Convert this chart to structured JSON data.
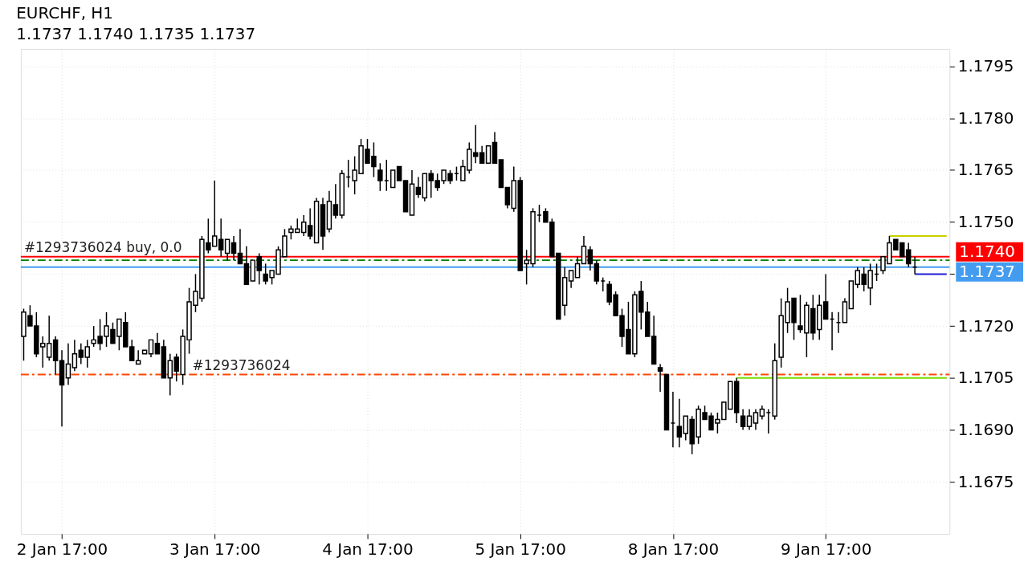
{
  "chart_data": {
    "type": "candlestick",
    "title": "EURCHF, H1",
    "subtitle": "1.1737 1.1740 1.1735 1.1737",
    "categories": [
      null,
      null,
      null,
      null,
      null,
      null,
      "2 Jan 17:00",
      null,
      null,
      null,
      null,
      null,
      null,
      null,
      null,
      null,
      null,
      null,
      null,
      null,
      null,
      null,
      null,
      null,
      null,
      null,
      null,
      null,
      null,
      null,
      "3 Jan 17:00",
      null,
      null,
      null,
      null,
      null,
      null,
      null,
      null,
      null,
      null,
      null,
      null,
      null,
      null,
      null,
      null,
      null,
      null,
      null,
      null,
      null,
      null,
      null,
      "4 Jan 17:00",
      null,
      null,
      null,
      null,
      null,
      null,
      null,
      null,
      null,
      null,
      null,
      null,
      null,
      null,
      null,
      null,
      null,
      null,
      null,
      null,
      null,
      null,
      null,
      "5 Jan 17:00",
      null,
      null,
      null,
      null,
      null,
      null,
      null,
      null,
      null,
      null,
      null,
      null,
      null,
      null,
      null,
      null,
      null,
      null,
      null,
      null,
      null,
      null,
      null,
      "8 Jan 17:00",
      null,
      null,
      null,
      null,
      null,
      null,
      null,
      null,
      null,
      null,
      null,
      null,
      null,
      null,
      null,
      null,
      null,
      null,
      null,
      null,
      null,
      null,
      null,
      "9 Jan 17:00",
      null,
      null,
      null,
      null,
      null,
      null,
      null,
      null,
      null,
      null,
      null,
      null,
      null,
      null,
      null,
      null,
      null,
      null,
      null
    ],
    "ohlc": [
      [
        1.1717,
        1.1725,
        1.171,
        1.1724
      ],
      [
        1.1723,
        1.1726,
        1.172,
        1.172
      ],
      [
        1.172,
        1.1724,
        1.1711,
        1.1712
      ],
      [
        1.1714,
        1.1717,
        1.1708,
        1.1715
      ],
      [
        1.1711,
        1.1723,
        1.171,
        1.1715
      ],
      [
        1.1716,
        1.1717,
        1.1706,
        1.171
      ],
      [
        1.171,
        1.1713,
        1.1691,
        1.1703
      ],
      [
        1.1705,
        1.1715,
        1.1703,
        1.1709
      ],
      [
        1.1708,
        1.1716,
        1.1707,
        1.1712
      ],
      [
        1.1713,
        1.1715,
        1.1709,
        1.1711
      ],
      [
        1.1711,
        1.1716,
        1.1708,
        1.1714
      ],
      [
        1.1715,
        1.172,
        1.1714,
        1.1716
      ],
      [
        1.1717,
        1.1722,
        1.1713,
        1.1715
      ],
      [
        1.1717,
        1.1724,
        1.1714,
        1.172
      ],
      [
        1.1719,
        1.1721,
        1.1715,
        1.1715
      ],
      [
        1.1717,
        1.1722,
        1.1713,
        1.1722
      ],
      [
        1.1721,
        1.1724,
        1.1714,
        1.1714
      ],
      [
        1.1714,
        1.1716,
        1.171,
        1.171
      ],
      [
        1.1709,
        1.1713,
        1.1709,
        1.171
      ],
      [
        1.1712,
        1.1713,
        1.1712,
        1.1713
      ],
      [
        1.1712,
        1.1716,
        1.1711,
        1.1716
      ],
      [
        1.1715,
        1.1718,
        1.1712,
        1.1712
      ],
      [
        1.1714,
        1.1716,
        1.1705,
        1.1705
      ],
      [
        1.1705,
        1.1712,
        1.17,
        1.171
      ],
      [
        1.1711,
        1.1712,
        1.1704,
        1.1707
      ],
      [
        1.1706,
        1.1719,
        1.1703,
        1.1717
      ],
      [
        1.1716,
        1.1731,
        1.1712,
        1.1727
      ],
      [
        1.1726,
        1.1735,
        1.1724,
        1.173
      ],
      [
        1.1728,
        1.1746,
        1.1727,
        1.1745
      ],
      [
        1.1744,
        1.1751,
        1.1741,
        1.1742
      ],
      [
        1.1743,
        1.1762,
        1.1743,
        1.1746
      ],
      [
        1.1745,
        1.1751,
        1.174,
        1.1742
      ],
      [
        1.1741,
        1.1745,
        1.1739,
        1.1745
      ],
      [
        1.1744,
        1.1746,
        1.1739,
        1.1741
      ],
      [
        1.1741,
        1.1748,
        1.1738,
        1.1738
      ],
      [
        1.1738,
        1.1743,
        1.1732,
        1.1732
      ],
      [
        1.1733,
        1.1739,
        1.1733,
        1.1739
      ],
      [
        1.174,
        1.1741,
        1.1732,
        1.1736
      ],
      [
        1.1735,
        1.1738,
        1.1732,
        1.1733
      ],
      [
        1.1734,
        1.1736,
        1.1732,
        1.1736
      ],
      [
        1.1735,
        1.1743,
        1.1735,
        1.1742
      ],
      [
        1.174,
        1.1748,
        1.174,
        1.1746
      ],
      [
        1.1747,
        1.1749,
        1.1745,
        1.1748
      ],
      [
        1.1747,
        1.1751,
        1.1747,
        1.1748
      ],
      [
        1.1747,
        1.1752,
        1.1746,
        1.175
      ],
      [
        1.1749,
        1.1754,
        1.1745,
        1.1746
      ],
      [
        1.1744,
        1.1757,
        1.1744,
        1.1756
      ],
      [
        1.1755,
        1.1757,
        1.1742,
        1.1746
      ],
      [
        1.1748,
        1.1759,
        1.1747,
        1.1756
      ],
      [
        1.1755,
        1.1761,
        1.1751,
        1.1752
      ],
      [
        1.1752,
        1.1765,
        1.1751,
        1.1764
      ],
      [
        1.1763,
        1.1768,
        1.176,
        1.1763
      ],
      [
        1.1762,
        1.1769,
        1.1758,
        1.1765
      ],
      [
        1.1764,
        1.1774,
        1.1764,
        1.1772
      ],
      [
        1.1771,
        1.1774,
        1.1767,
        1.1767
      ],
      [
        1.1769,
        1.1773,
        1.1763,
        1.1766
      ],
      [
        1.1765,
        1.1767,
        1.1759,
        1.1762
      ],
      [
        1.1762,
        1.1768,
        1.1759,
        1.1762
      ],
      [
        1.176,
        1.1765,
        1.176,
        1.1765
      ],
      [
        1.1766,
        1.1766,
        1.1762,
        1.1762
      ],
      [
        1.1762,
        1.1762,
        1.1753,
        1.1753
      ],
      [
        1.1752,
        1.1765,
        1.1752,
        1.1761
      ],
      [
        1.176,
        1.1763,
        1.1757,
        1.1758
      ],
      [
        1.1757,
        1.1764,
        1.1756,
        1.1764
      ],
      [
        1.1764,
        1.1765,
        1.1757,
        1.1762
      ],
      [
        1.1762,
        1.1764,
        1.1759,
        1.176
      ],
      [
        1.1762,
        1.1765,
        1.1761,
        1.1765
      ],
      [
        1.1764,
        1.1765,
        1.1761,
        1.1762
      ],
      [
        1.1764,
        1.1766,
        1.1762,
        1.1764
      ],
      [
        1.1762,
        1.1768,
        1.1762,
        1.1766
      ],
      [
        1.1765,
        1.1773,
        1.1764,
        1.1771
      ],
      [
        1.177,
        1.1778,
        1.1767,
        1.1769
      ],
      [
        1.177,
        1.1772,
        1.1767,
        1.1767
      ],
      [
        1.1767,
        1.1772,
        1.1767,
        1.1772
      ],
      [
        1.1773,
        1.1776,
        1.1767,
        1.1767
      ],
      [
        1.1768,
        1.1768,
        1.176,
        1.176
      ],
      [
        1.176,
        1.176,
        1.1754,
        1.1755
      ],
      [
        1.1754,
        1.1766,
        1.1753,
        1.1762
      ],
      [
        1.1762,
        1.1763,
        1.1736,
        1.1736
      ],
      [
        1.1738,
        1.1742,
        1.1732,
        1.1739
      ],
      [
        1.1738,
        1.1754,
        1.1737,
        1.1753
      ],
      [
        1.1752,
        1.1755,
        1.175,
        1.1752
      ],
      [
        1.1753,
        1.1754,
        1.175,
        1.175
      ],
      [
        1.175,
        1.1751,
        1.174,
        1.174
      ],
      [
        1.1741,
        1.1741,
        1.1722,
        1.1722
      ],
      [
        1.1726,
        1.1737,
        1.1723,
        1.1734
      ],
      [
        1.1733,
        1.1736,
        1.1731,
        1.1736
      ],
      [
        1.1734,
        1.174,
        1.1734,
        1.1738
      ],
      [
        1.1738,
        1.1746,
        1.1738,
        1.1743
      ],
      [
        1.1742,
        1.1743,
        1.1736,
        1.1738
      ],
      [
        1.1738,
        1.1739,
        1.1732,
        1.1733
      ],
      [
        1.1733,
        1.1734,
        1.173,
        1.1733
      ],
      [
        1.1732,
        1.1733,
        1.1726,
        1.1727
      ],
      [
        1.1729,
        1.173,
        1.1723,
        1.1723
      ],
      [
        1.1723,
        1.1725,
        1.1714,
        1.1717
      ],
      [
        1.1719,
        1.1727,
        1.1712,
        1.1712
      ],
      [
        1.1712,
        1.173,
        1.1711,
        1.1729
      ],
      [
        1.173,
        1.1733,
        1.1719,
        1.1724
      ],
      [
        1.1724,
        1.1727,
        1.1717,
        1.1717
      ],
      [
        1.1717,
        1.1723,
        1.1709,
        1.1709
      ],
      [
        1.1708,
        1.1709,
        1.1701,
        1.1707
      ],
      [
        1.1706,
        1.1706,
        1.169,
        1.169
      ],
      [
        1.1692,
        1.1701,
        1.1685,
        1.1692
      ],
      [
        1.1691,
        1.1699,
        1.1685,
        1.1688
      ],
      [
        1.1689,
        1.1694,
        1.1687,
        1.1694
      ],
      [
        1.1693,
        1.1694,
        1.1683,
        1.1686
      ],
      [
        1.1688,
        1.1697,
        1.1686,
        1.1696
      ],
      [
        1.1695,
        1.1697,
        1.1693,
        1.1693
      ],
      [
        1.1694,
        1.1695,
        1.169,
        1.169
      ],
      [
        1.1692,
        1.1695,
        1.1689,
        1.1693
      ],
      [
        1.1693,
        1.1698,
        1.1693,
        1.1698
      ],
      [
        1.1696,
        1.1704,
        1.1696,
        1.1704
      ],
      [
        1.1704,
        1.1705,
        1.1692,
        1.1695
      ],
      [
        1.1694,
        1.1696,
        1.169,
        1.1691
      ],
      [
        1.1691,
        1.1696,
        1.169,
        1.1694
      ],
      [
        1.1692,
        1.1696,
        1.169,
        1.1695
      ],
      [
        1.1694,
        1.1697,
        1.1693,
        1.1696
      ],
      [
        1.1695,
        1.1696,
        1.1689,
        1.1695
      ],
      [
        1.1694,
        1.1715,
        1.1693,
        1.171
      ],
      [
        1.1711,
        1.1728,
        1.1708,
        1.1723
      ],
      [
        1.1721,
        1.1731,
        1.1718,
        1.1727
      ],
      [
        1.1728,
        1.1728,
        1.1716,
        1.1721
      ],
      [
        1.172,
        1.1729,
        1.1718,
        1.1719
      ],
      [
        1.1718,
        1.1727,
        1.1711,
        1.1726
      ],
      [
        1.1725,
        1.1729,
        1.1716,
        1.1718
      ],
      [
        1.1719,
        1.1729,
        1.1716,
        1.1726
      ],
      [
        1.1727,
        1.1735,
        1.1722,
        1.1722
      ],
      [
        1.1722,
        1.1724,
        1.1713,
        1.1722
      ],
      [
        1.1721,
        1.1724,
        1.1718,
        1.1721
      ],
      [
        1.1721,
        1.1728,
        1.1721,
        1.1727
      ],
      [
        1.1725,
        1.1733,
        1.1725,
        1.1733
      ],
      [
        1.1732,
        1.1737,
        1.1731,
        1.1736
      ],
      [
        1.1735,
        1.1737,
        1.173,
        1.1732
      ],
      [
        1.1731,
        1.1738,
        1.1726,
        1.1736
      ],
      [
        1.1735,
        1.1738,
        1.1733,
        1.1735
      ],
      [
        1.1736,
        1.174,
        1.1735,
        1.174
      ],
      [
        1.1738,
        1.1746,
        1.1738,
        1.1744
      ],
      [
        1.1745,
        1.1745,
        1.1742,
        1.1742
      ],
      [
        1.1744,
        1.1744,
        1.174,
        1.174
      ],
      [
        1.1742,
        1.1744,
        1.1737,
        1.1738
      ],
      [
        1.1737,
        1.174,
        1.1735,
        1.1737
      ],
      null,
      null,
      null,
      null,
      null
    ],
    "series": [
      {
        "type": "line",
        "color": "#c8d000",
        "values": [
          null,
          null,
          null,
          null,
          null,
          null,
          null,
          null,
          null,
          null,
          null,
          null,
          null,
          null,
          null,
          null,
          null,
          null,
          null,
          null,
          null,
          null,
          null,
          null,
          null,
          null,
          null,
          null,
          null,
          null,
          null,
          null,
          null,
          null,
          null,
          null,
          null,
          null,
          null,
          null,
          null,
          null,
          null,
          null,
          null,
          null,
          null,
          null,
          null,
          null,
          null,
          null,
          null,
          null,
          null,
          null,
          null,
          null,
          null,
          null,
          null,
          null,
          null,
          null,
          null,
          null,
          null,
          null,
          null,
          null,
          null,
          null,
          null,
          null,
          null,
          null,
          null,
          null,
          null,
          null,
          null,
          null,
          null,
          null,
          null,
          null,
          null,
          null,
          null,
          null,
          null,
          null,
          null,
          null,
          null,
          null,
          null,
          null,
          null,
          null,
          null,
          null,
          null,
          null,
          null,
          null,
          null,
          null,
          null,
          null,
          null,
          null,
          null,
          null,
          null,
          null,
          null,
          null,
          null,
          null,
          null,
          null,
          null,
          null,
          null,
          null,
          null,
          null,
          null,
          null,
          null,
          null,
          null,
          null,
          null,
          null,
          1.1746,
          1.1746,
          1.1746,
          1.1746,
          1.1746,
          1.1746,
          1.1746,
          1.1746,
          1.1746,
          1.1746
        ]
      },
      {
        "type": "line",
        "color": "#77dd00",
        "values": [
          null,
          null,
          null,
          null,
          null,
          null,
          null,
          null,
          null,
          null,
          null,
          null,
          null,
          null,
          null,
          null,
          null,
          null,
          null,
          null,
          null,
          null,
          null,
          null,
          null,
          null,
          null,
          null,
          null,
          null,
          null,
          null,
          null,
          null,
          null,
          null,
          null,
          null,
          null,
          null,
          null,
          null,
          null,
          null,
          null,
          null,
          null,
          null,
          null,
          null,
          null,
          null,
          null,
          null,
          null,
          null,
          null,
          null,
          null,
          null,
          null,
          null,
          null,
          null,
          null,
          null,
          null,
          null,
          null,
          null,
          null,
          null,
          null,
          null,
          null,
          null,
          null,
          null,
          null,
          null,
          null,
          null,
          null,
          null,
          null,
          null,
          null,
          null,
          null,
          null,
          null,
          null,
          null,
          null,
          null,
          null,
          null,
          null,
          null,
          null,
          null,
          null,
          null,
          null,
          null,
          null,
          null,
          null,
          null,
          null,
          null,
          null,
          1.1705,
          1.1705,
          1.1705,
          1.1705,
          1.1705,
          1.1705,
          1.1705,
          1.1705,
          1.1705,
          1.1705,
          1.1705,
          1.1705,
          1.1705,
          1.1705,
          1.1705,
          1.1705,
          1.1705,
          1.1705,
          1.1705,
          1.1705,
          1.1705,
          1.1705,
          1.1705,
          1.1705,
          1.1705,
          1.1705,
          1.1705,
          1.1705,
          1.1705,
          1.1705,
          1.1705,
          1.1705,
          1.1705,
          1.1705
        ]
      },
      {
        "type": "line",
        "color": "#1c1cd8",
        "values": [
          null,
          null,
          null,
          null,
          null,
          null,
          null,
          null,
          null,
          null,
          null,
          null,
          null,
          null,
          null,
          null,
          null,
          null,
          null,
          null,
          null,
          null,
          null,
          null,
          null,
          null,
          null,
          null,
          null,
          null,
          null,
          null,
          null,
          null,
          null,
          null,
          null,
          null,
          null,
          null,
          null,
          null,
          null,
          null,
          null,
          null,
          null,
          null,
          null,
          null,
          null,
          null,
          null,
          null,
          null,
          null,
          null,
          null,
          null,
          null,
          null,
          null,
          null,
          null,
          null,
          null,
          null,
          null,
          null,
          null,
          null,
          null,
          null,
          null,
          null,
          null,
          null,
          null,
          null,
          null,
          null,
          null,
          null,
          null,
          null,
          null,
          null,
          null,
          null,
          null,
          null,
          null,
          null,
          null,
          null,
          null,
          null,
          null,
          null,
          null,
          null,
          null,
          null,
          null,
          null,
          null,
          null,
          null,
          null,
          null,
          null,
          null,
          null,
          null,
          null,
          null,
          null,
          null,
          null,
          null,
          null,
          null,
          null,
          null,
          null,
          null,
          null,
          null,
          null,
          null,
          null,
          null,
          null,
          null,
          null,
          null,
          null,
          null,
          null,
          null,
          1.1735,
          1.1735,
          1.1735,
          1.1735,
          1.1735,
          1.1735
        ]
      }
    ],
    "ref_lines": [
      {
        "axis": "y",
        "value": 1.174,
        "label": "1.1740",
        "color": "#ff0000",
        "line_style": "solid"
      },
      {
        "axis": "y",
        "value": 1.1737,
        "label": "1.1737",
        "color": "#439cf0",
        "line_style": "solid"
      },
      {
        "axis": "y",
        "value": 1.1739,
        "label": "#1293736024 buy, 0.0",
        "color": "#008000",
        "line_style": "dashed"
      },
      {
        "axis": "y",
        "value": 1.1706,
        "color": "#ff4500",
        "line_style": "dashed"
      }
    ],
    "annotations": [
      {
        "text": "#1293736024",
        "y": 1.1706
      }
    ],
    "ylim": [
      1.166,
      1.18
    ],
    "yticks": [
      1.1675,
      {
        "value": 1.169,
        "label": "1.1690"
      },
      1.1705,
      {
        "value": 1.172,
        "label": "1.1720"
      },
      {
        "value": 1.1735,
        "label": null
      },
      {
        "value": 1.175,
        "label": "1.1750"
      },
      1.1765,
      {
        "value": 1.178,
        "label": "1.1780"
      },
      1.1795
    ],
    "grid": true
  }
}
